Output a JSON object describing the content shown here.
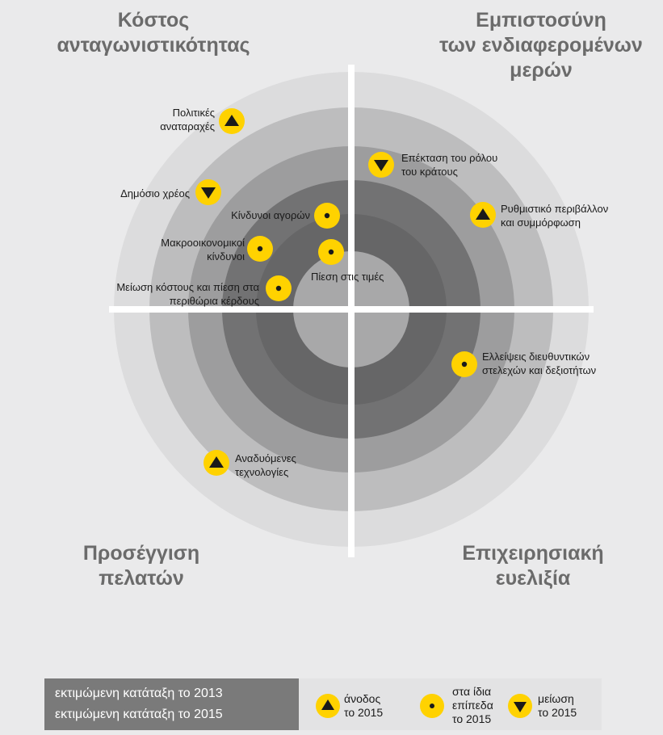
{
  "quadrants": {
    "top_left": [
      "Κόστος",
      "ανταγωνιστικότητας"
    ],
    "top_right": [
      "Εμπιστοσύνη",
      "των ενδιαφερομένων",
      "μερών"
    ],
    "bottom_left": [
      "Προσέγγιση",
      "πελατών"
    ],
    "bottom_right": [
      "Επιχειρησιακή",
      "ευελιξία"
    ]
  },
  "risks": [
    {
      "label": [
        "Πολιτικές",
        "αναταραχές"
      ],
      "trend": "up",
      "label_side": "left"
    },
    {
      "label": [
        "Δημόσιο χρέος"
      ],
      "trend": "down",
      "label_side": "left"
    },
    {
      "label": [
        "Κίνδυνοι αγορών"
      ],
      "trend": "same",
      "label_side": "left"
    },
    {
      "label": [
        "Μακροοικονομικοί",
        "κίνδυνοι"
      ],
      "trend": "same",
      "label_side": "left"
    },
    {
      "label": [
        "Πίεση στις τιμές"
      ],
      "trend": "same",
      "label_side": "below"
    },
    {
      "label": [
        "Μείωση κόστους και πίεση στα",
        "περιθώρια κέρδους"
      ],
      "trend": "same",
      "label_side": "left"
    },
    {
      "label": [
        "Επέκταση του ρόλου",
        "του κράτους"
      ],
      "trend": "down",
      "label_side": "right"
    },
    {
      "label": [
        "Ρυθμιστικό περιβάλλον",
        "και συμμόρφωση"
      ],
      "trend": "up",
      "label_side": "right"
    },
    {
      "label": [
        "Ελλείψεις διευθυντικών",
        "στελεχών και δεξιοτήτων"
      ],
      "trend": "same",
      "label_side": "right"
    },
    {
      "label": [
        "Αναδυόμενες",
        "τεχνολογίες"
      ],
      "trend": "up",
      "label_side": "right"
    }
  ],
  "legend": {
    "rank_2013": "εκτιμώμενη κατάταξη το 2013",
    "rank_2015": "εκτιμώμενη κατάταξη το 2015",
    "up": [
      "άνοδος",
      "το 2015"
    ],
    "same": [
      "στα ίδια",
      "επίπεδα",
      "το 2015"
    ],
    "down": [
      "μείωση",
      "το 2015"
    ]
  },
  "colors": {
    "background": "#eaeaeb",
    "marker": "#ffd200",
    "ring_outer": "#dcdcdd",
    "ring_2": "#bdbdbe",
    "ring_3": "#9d9d9e",
    "ring_4": "#727273",
    "center": "#a8a8a9",
    "legend_dark": "#7a7a7a",
    "title_text": "#6b6b6b"
  }
}
